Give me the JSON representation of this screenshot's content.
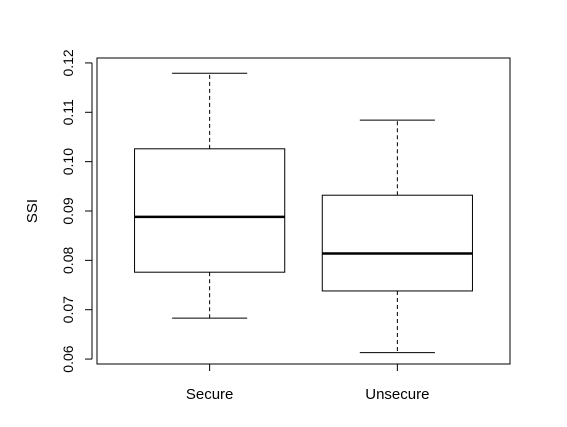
{
  "chart_data": {
    "type": "box",
    "title": "",
    "xlabel": "",
    "ylabel": "SSI",
    "ylim": [
      0.059,
      0.121
    ],
    "y_ticks": [
      0.06,
      0.07,
      0.08,
      0.09,
      0.1,
      0.11,
      0.12
    ],
    "y_tick_labels": [
      "0.06",
      "0.07",
      "0.08",
      "0.09",
      "0.10",
      "0.11",
      "0.12"
    ],
    "categories": [
      "Secure",
      "Unsecure"
    ],
    "boxes": [
      {
        "category": "Secure",
        "whisker_low": 0.0683,
        "q1": 0.0776,
        "median": 0.0888,
        "q3": 0.1026,
        "whisker_high": 0.1179
      },
      {
        "category": "Unsecure",
        "whisker_low": 0.0613,
        "q1": 0.0738,
        "median": 0.0814,
        "q3": 0.0932,
        "whisker_high": 0.1084
      }
    ],
    "grid": false,
    "legend": "none",
    "colors": {
      "box_fill": "#ffffff",
      "stroke": "#000000"
    }
  }
}
